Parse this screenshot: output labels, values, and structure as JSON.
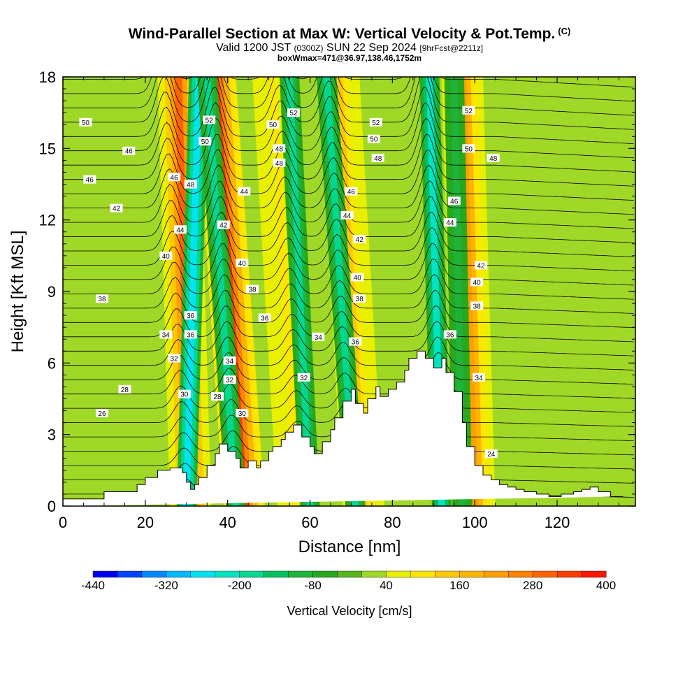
{
  "header": {
    "title": "Wind-Parallel Section at Max W: Vertical Velocity & Pot.Temp.",
    "title_mark": "(C)",
    "valid_prefix": "Valid 1200 JST",
    "valid_utc": "(0300Z)",
    "valid_date": "SUN 22 Sep 2024",
    "forecast_info": "[9hrFcst@2211z]",
    "box_info": "boxWmax=471@36.97,138.46,1752m"
  },
  "chart_data": {
    "type": "heatmap",
    "xlabel": "Distance [nm]",
    "ylabel": "Height [Kft MSL]",
    "xlim": [
      0,
      139
    ],
    "ylim": [
      0,
      18
    ],
    "x_ticks": [
      0,
      20,
      40,
      60,
      80,
      100,
      120
    ],
    "y_ticks": [
      0,
      3,
      6,
      9,
      12,
      15,
      18
    ],
    "grid": false,
    "terrain_profile": {
      "x": [
        0,
        10,
        10,
        18,
        18,
        20,
        20,
        23,
        23,
        26,
        26,
        29,
        29,
        30,
        30,
        31,
        31,
        32,
        32,
        33,
        33,
        35,
        35,
        37,
        37,
        38,
        38,
        40,
        40,
        42,
        42,
        43,
        43,
        45,
        45,
        47,
        47,
        48,
        48,
        50,
        50,
        51,
        51,
        53,
        53,
        54,
        54,
        56,
        56,
        58,
        58,
        60,
        60,
        61,
        61,
        63,
        63,
        65,
        65,
        66,
        66,
        68,
        68,
        70,
        70,
        71,
        71,
        73,
        73,
        74,
        74,
        76,
        76,
        77,
        77,
        79,
        79,
        81,
        81,
        83,
        83,
        84,
        84,
        86,
        86,
        88,
        88,
        90,
        90,
        92,
        92,
        93,
        93,
        95,
        95,
        97,
        97,
        98,
        98,
        100,
        100,
        102,
        102,
        104,
        104,
        106,
        106,
        108,
        108,
        110,
        110,
        112,
        112,
        115,
        115,
        118,
        118,
        121,
        121,
        124,
        124,
        126,
        126,
        128,
        128,
        130,
        130,
        133,
        133,
        136,
        136,
        139
      ],
      "y": [
        0.3,
        0.3,
        0.6,
        0.6,
        0.9,
        0.9,
        1.2,
        1.2,
        1.5,
        1.5,
        1.6,
        1.6,
        1.4,
        1.4,
        1.0,
        1.0,
        0.7,
        0.7,
        0.9,
        0.9,
        1.2,
        1.2,
        1.7,
        1.7,
        2.2,
        2.2,
        2.6,
        2.6,
        2.3,
        2.3,
        2.0,
        2.0,
        1.6,
        1.6,
        1.9,
        1.9,
        1.6,
        1.6,
        1.9,
        1.9,
        2.3,
        2.3,
        2.5,
        2.5,
        2.8,
        2.8,
        3.1,
        3.1,
        3.4,
        3.4,
        2.9,
        2.9,
        2.5,
        2.5,
        2.2,
        2.2,
        2.7,
        2.7,
        3.2,
        3.2,
        3.7,
        3.7,
        4.4,
        4.4,
        4.9,
        4.9,
        4.3,
        4.3,
        3.9,
        3.9,
        4.5,
        4.5,
        5.0,
        5.0,
        4.6,
        4.6,
        4.9,
        4.9,
        5.2,
        5.2,
        5.7,
        5.7,
        6.2,
        6.2,
        6.5,
        6.5,
        6.2,
        6.2,
        5.8,
        5.8,
        6.2,
        6.2,
        5.6,
        5.6,
        4.8,
        4.8,
        3.5,
        3.5,
        2.5,
        2.5,
        1.7,
        1.7,
        1.3,
        1.3,
        1.1,
        1.1,
        0.9,
        0.9,
        0.8,
        0.8,
        0.7,
        0.7,
        0.6,
        0.6,
        0.5,
        0.5,
        0.4,
        0.4,
        0.5,
        0.5,
        0.6,
        0.6,
        0.7,
        0.7,
        0.8,
        0.8,
        0.6,
        0.6,
        0.4,
        0.4
      ]
    },
    "updraft_bands": [
      {
        "x_bottom": 31,
        "x_top": 28,
        "peak": 300
      },
      {
        "x_bottom": 44,
        "x_top": 37,
        "peak": 320
      },
      {
        "x_bottom": 57,
        "x_top": 51,
        "peak": 100
      },
      {
        "x_bottom": 73,
        "x_top": 67,
        "peak": 120
      },
      {
        "x_bottom": 100,
        "x_top": 97,
        "peak": 220
      }
    ],
    "downdraft_bands": [
      {
        "x_bottom": 30,
        "x_top": 33,
        "peak": -280
      },
      {
        "x_bottom": 42,
        "x_top": 35,
        "peak": -200
      },
      {
        "x_bottom": 60,
        "x_top": 55,
        "peak": -180
      },
      {
        "x_bottom": 71,
        "x_top": 64,
        "peak": -170
      },
      {
        "x_bottom": 92,
        "x_top": 89,
        "peak": -230
      },
      {
        "x_bottom": 97,
        "x_top": 95,
        "peak": -120
      }
    ],
    "theta_labels": [
      {
        "text": "50",
        "x": 5.5,
        "y": 16.1
      },
      {
        "text": "46",
        "x": 16,
        "y": 14.9
      },
      {
        "text": "46",
        "x": 6.5,
        "y": 13.7
      },
      {
        "text": "42",
        "x": 13,
        "y": 12.5
      },
      {
        "text": "46",
        "x": 27,
        "y": 13.8
      },
      {
        "text": "48",
        "x": 31,
        "y": 13.5
      },
      {
        "text": "52",
        "x": 35.5,
        "y": 16.2
      },
      {
        "text": "50",
        "x": 34.5,
        "y": 15.3
      },
      {
        "text": "44",
        "x": 28.5,
        "y": 11.6
      },
      {
        "text": "40",
        "x": 25,
        "y": 10.5
      },
      {
        "text": "38",
        "x": 9.5,
        "y": 8.7
      },
      {
        "text": "36",
        "x": 31,
        "y": 8.0
      },
      {
        "text": "36",
        "x": 31,
        "y": 7.2
      },
      {
        "text": "34",
        "x": 25,
        "y": 7.2
      },
      {
        "text": "32",
        "x": 27,
        "y": 6.2
      },
      {
        "text": "30",
        "x": 29.5,
        "y": 4.7
      },
      {
        "text": "28",
        "x": 15,
        "y": 4.9
      },
      {
        "text": "26",
        "x": 9.5,
        "y": 3.9
      },
      {
        "text": "28",
        "x": 37.5,
        "y": 4.6
      },
      {
        "text": "44",
        "x": 44,
        "y": 13.2
      },
      {
        "text": "42",
        "x": 39,
        "y": 11.8
      },
      {
        "text": "40",
        "x": 43.5,
        "y": 10.2
      },
      {
        "text": "38",
        "x": 46,
        "y": 9.1
      },
      {
        "text": "36",
        "x": 49,
        "y": 7.9
      },
      {
        "text": "34",
        "x": 40.5,
        "y": 6.1
      },
      {
        "text": "32",
        "x": 40.5,
        "y": 5.3
      },
      {
        "text": "30",
        "x": 43.5,
        "y": 3.9
      },
      {
        "text": "52",
        "x": 56,
        "y": 16.5
      },
      {
        "text": "50",
        "x": 51,
        "y": 16.0
      },
      {
        "text": "48",
        "x": 52.5,
        "y": 15.0
      },
      {
        "text": "48",
        "x": 52.5,
        "y": 14.4
      },
      {
        "text": "34",
        "x": 62,
        "y": 7.1
      },
      {
        "text": "32",
        "x": 58.5,
        "y": 5.4
      },
      {
        "text": "52",
        "x": 76,
        "y": 16.1
      },
      {
        "text": "50",
        "x": 75.5,
        "y": 15.4
      },
      {
        "text": "48",
        "x": 76.5,
        "y": 14.6
      },
      {
        "text": "46",
        "x": 70,
        "y": 13.2
      },
      {
        "text": "44",
        "x": 69,
        "y": 12.2
      },
      {
        "text": "42",
        "x": 72,
        "y": 11.2
      },
      {
        "text": "40",
        "x": 71.5,
        "y": 9.6
      },
      {
        "text": "38",
        "x": 72,
        "y": 8.7
      },
      {
        "text": "36",
        "x": 71,
        "y": 6.9
      },
      {
        "text": "52",
        "x": 98.5,
        "y": 16.6
      },
      {
        "text": "50",
        "x": 98.5,
        "y": 15.0
      },
      {
        "text": "48",
        "x": 104.5,
        "y": 14.6
      },
      {
        "text": "46",
        "x": 95,
        "y": 12.8
      },
      {
        "text": "44",
        "x": 94,
        "y": 11.9
      },
      {
        "text": "42",
        "x": 101.5,
        "y": 10.1
      },
      {
        "text": "40",
        "x": 100.5,
        "y": 9.4
      },
      {
        "text": "38",
        "x": 100.5,
        "y": 8.4
      },
      {
        "text": "36",
        "x": 94,
        "y": 7.2
      },
      {
        "text": "34",
        "x": 101,
        "y": 5.4
      },
      {
        "text": "24",
        "x": 104,
        "y": 2.2
      }
    ],
    "colorbar": {
      "title": "Vertical Velocity [cm/s]",
      "min": -440,
      "max": 400,
      "step": 40,
      "tick_labels": [
        "-440",
        "-320",
        "-200",
        "-80",
        "40",
        "160",
        "280",
        "400"
      ],
      "colors": [
        "#0000f0",
        "#0044ff",
        "#0088ff",
        "#00b8ff",
        "#00e4f0",
        "#00e4c4",
        "#00d890",
        "#00c060",
        "#1eb43c",
        "#28a81e",
        "#5ab41e",
        "#a0d828",
        "#e8f000",
        "#ffe600",
        "#ffc800",
        "#ffb400",
        "#ffa000",
        "#ff8200",
        "#ff6400",
        "#ff3c00",
        "#ff1400",
        "#dc0000",
        "#b40032",
        "#960064",
        "#780096",
        "#5a00a0"
      ]
    }
  }
}
